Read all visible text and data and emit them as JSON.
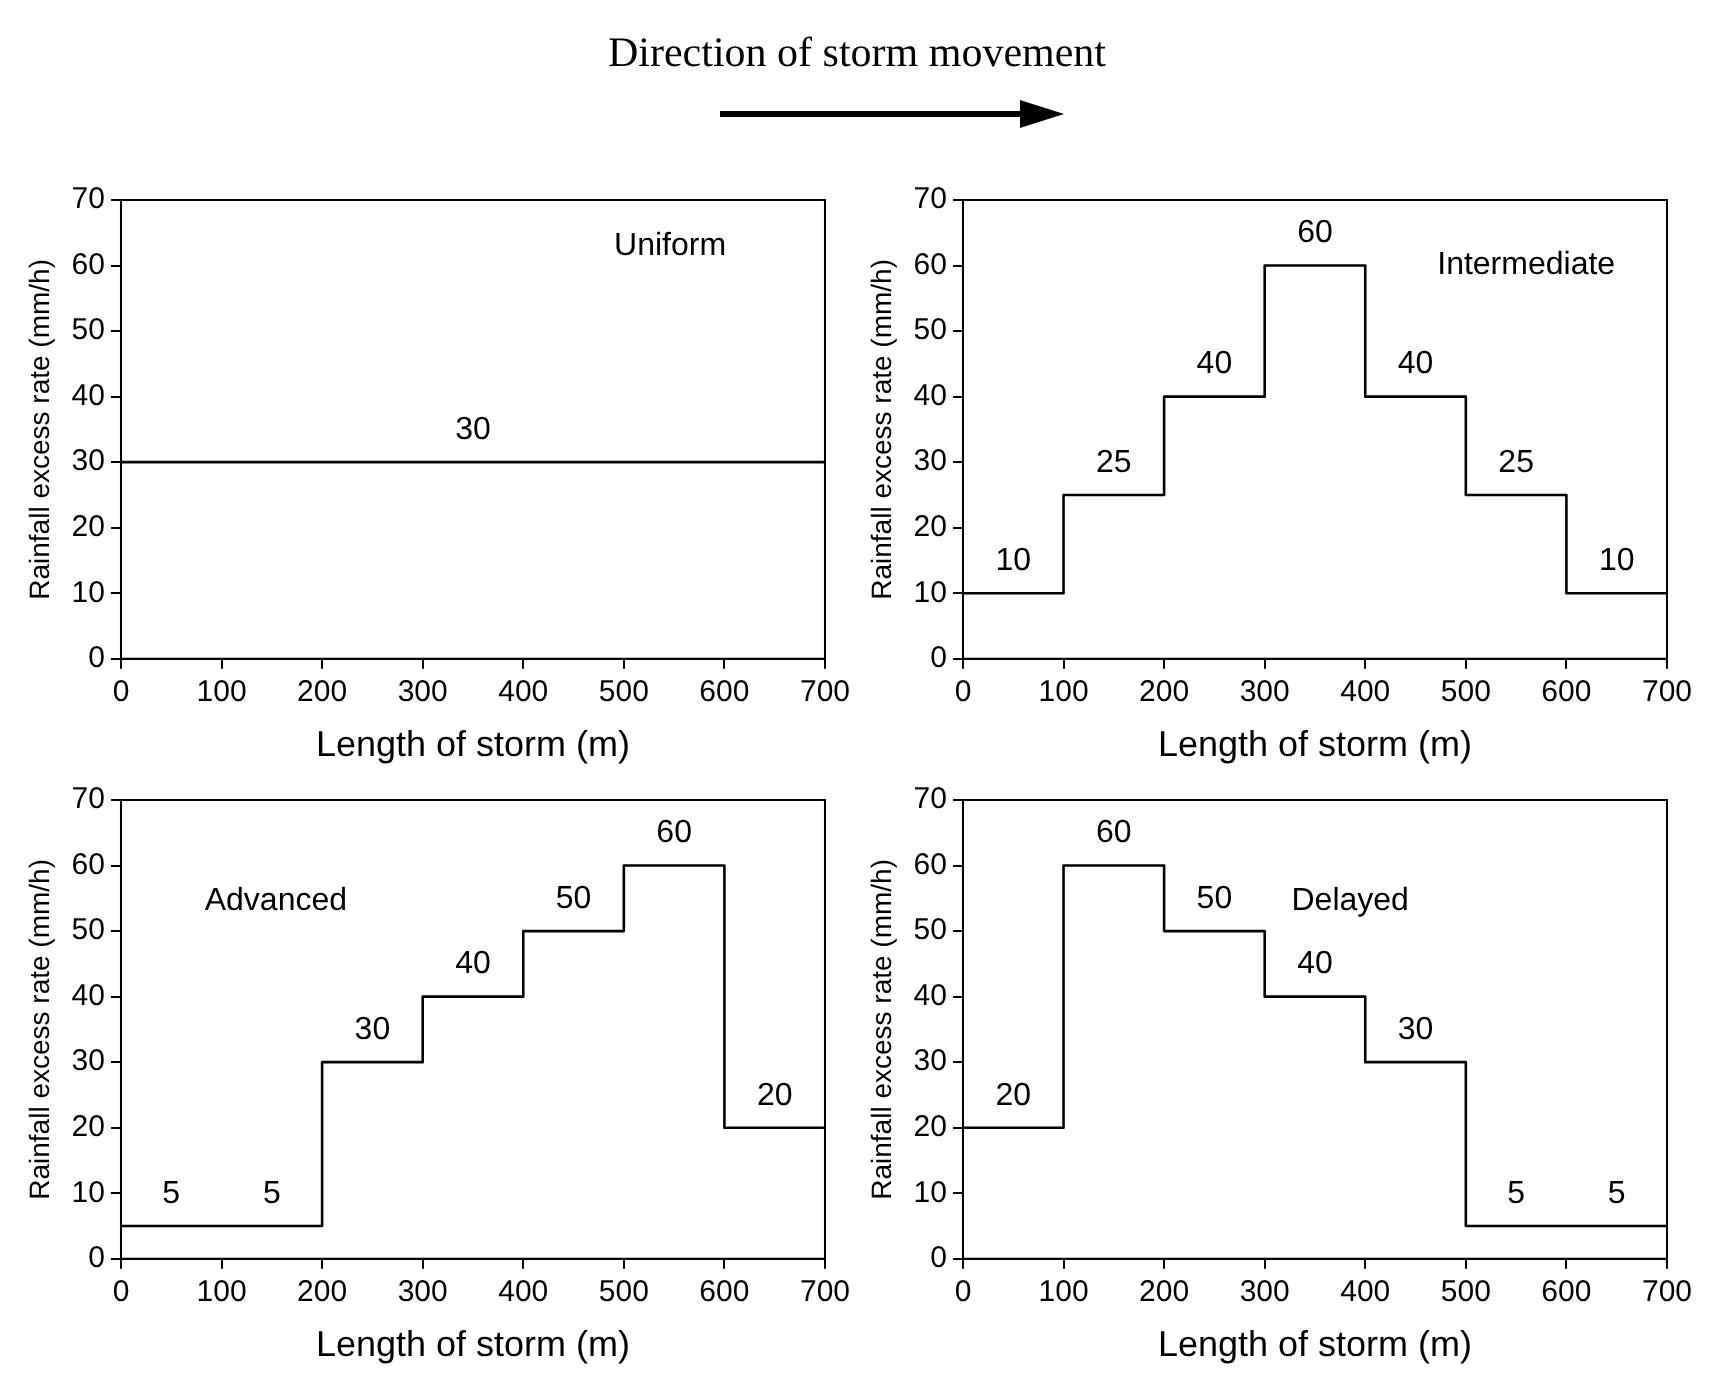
{
  "chart_data": [
    {
      "type": "step",
      "title": "Direction of storm movement",
      "xlabel": "Length of storm (m)",
      "ylabel": "Rainfall excess rate (mm/h)",
      "annotations": [
        "Uniform"
      ],
      "x": [
        0,
        100,
        200,
        300,
        400,
        500,
        600,
        700
      ],
      "values": [
        30,
        30,
        30,
        30,
        30,
        30,
        30,
        30
      ],
      "value_labels": [
        null,
        null,
        null,
        "30",
        null,
        null,
        null,
        null
      ],
      "color": "#000000",
      "marker": "none",
      "xlim": [
        0,
        700
      ],
      "xticks": [
        0,
        100,
        200,
        300,
        400,
        500,
        600,
        700
      ],
      "ylim": [
        0,
        70
      ],
      "yticks": [
        0,
        10,
        20,
        30,
        40,
        50,
        60,
        70
      ]
    },
    {
      "type": "step",
      "xlabel": "Length of storm (m)",
      "ylabel": "Rainfall excess rate (mm/h)",
      "annotations": [
        "Intermediate"
      ],
      "x": [
        0,
        100,
        200,
        300,
        400,
        500,
        600,
        700
      ],
      "values": [
        10,
        25,
        40,
        60,
        40,
        25,
        10,
        10
      ],
      "value_labels": [
        "10",
        "25",
        "40",
        "60",
        "40",
        "25",
        "10",
        null
      ],
      "color": "#000000",
      "marker": "none",
      "xlim": [
        0,
        700
      ],
      "xticks": [
        0,
        100,
        200,
        300,
        400,
        500,
        600,
        700
      ],
      "ylim": [
        0,
        70
      ],
      "yticks": [
        0,
        10,
        20,
        30,
        40,
        50,
        60,
        70
      ]
    },
    {
      "type": "step",
      "xlabel": "Length of storm (m)",
      "ylabel": "Rainfall excess rate (mm/h)",
      "annotations": [
        "Advanced"
      ],
      "x": [
        0,
        100,
        200,
        300,
        400,
        500,
        600,
        700
      ],
      "values": [
        5,
        5,
        30,
        40,
        50,
        60,
        20,
        20
      ],
      "value_labels": [
        "5",
        "5",
        "30",
        "40",
        "50",
        "60",
        "20",
        null
      ],
      "color": "#000000",
      "marker": "none",
      "xlim": [
        0,
        700
      ],
      "xticks": [
        0,
        100,
        200,
        300,
        400,
        500,
        600,
        700
      ],
      "ylim": [
        0,
        70
      ],
      "yticks": [
        0,
        10,
        20,
        30,
        40,
        50,
        60,
        70
      ]
    },
    {
      "type": "step",
      "xlabel": "Length of storm (m)",
      "ylabel": "Rainfall excess rate (mm/h)",
      "annotations": [
        "Delayed"
      ],
      "x": [
        0,
        100,
        200,
        300,
        400,
        500,
        600,
        700
      ],
      "values": [
        20,
        60,
        50,
        40,
        30,
        5,
        5,
        5
      ],
      "value_labels": [
        "20",
        "60",
        "50",
        "40",
        "30",
        "5",
        "5",
        null
      ],
      "color": "#000000",
      "marker": "none",
      "xlim": [
        0,
        700
      ],
      "xticks": [
        0,
        100,
        200,
        300,
        400,
        500,
        600,
        700
      ],
      "ylim": [
        0,
        70
      ],
      "yticks": [
        0,
        10,
        20,
        30,
        40,
        50,
        60,
        70
      ]
    }
  ]
}
